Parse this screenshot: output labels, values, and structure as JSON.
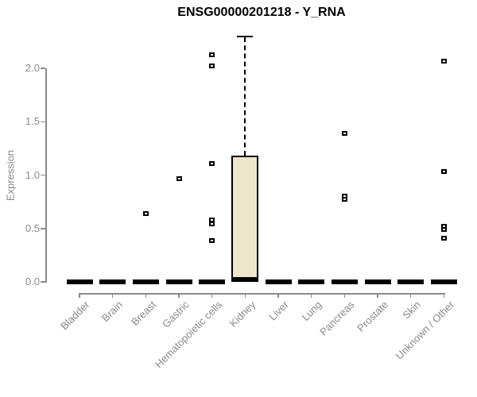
{
  "chart_data": {
    "type": "boxplot",
    "title": "ENSG00000201218 - Y_RNA",
    "ylabel": "Expression",
    "xlabel": "",
    "ylim": [
      0,
      2.35
    ],
    "yticks": [
      "0.0",
      "0.5",
      "1.0",
      "1.5",
      "2.0"
    ],
    "grid": "off",
    "legend": "none",
    "box_fill": "#EDE6CA",
    "box_border": "#000000",
    "axis_color": "#8a8a8a",
    "text_color": "#898989",
    "categories": [
      "Bladder",
      "Brain",
      "Breast",
      "Gastric",
      "Hematopoietic cells",
      "Kidney",
      "Liver",
      "Lung",
      "Pancreas",
      "Prostate",
      "Skin",
      "Unknown / Other"
    ],
    "series": [
      {
        "category": "Bladder",
        "q1": 0,
        "median": 0,
        "q3": 0,
        "whisker_low": 0,
        "whisker_high": 0,
        "outliers": []
      },
      {
        "category": "Brain",
        "q1": 0,
        "median": 0,
        "q3": 0,
        "whisker_low": 0,
        "whisker_high": 0,
        "outliers": []
      },
      {
        "category": "Breast",
        "q1": 0,
        "median": 0,
        "q3": 0,
        "whisker_low": 0,
        "whisker_high": 0,
        "outliers": [
          0.64
        ]
      },
      {
        "category": "Gastric",
        "q1": 0,
        "median": 0,
        "q3": 0,
        "whisker_low": 0,
        "whisker_high": 0,
        "outliers": [
          0.97
        ]
      },
      {
        "category": "Hematopoietic cells",
        "q1": 0,
        "median": 0,
        "q3": 0,
        "whisker_low": 0,
        "whisker_high": 0,
        "outliers": [
          2.13,
          2.02,
          1.11,
          0.58,
          0.54,
          0.39
        ]
      },
      {
        "category": "Kidney",
        "q1": 0,
        "median": 0.02,
        "q3": 1.18,
        "whisker_low": 0,
        "whisker_high": 2.3,
        "outliers": []
      },
      {
        "category": "Liver",
        "q1": 0,
        "median": 0,
        "q3": 0,
        "whisker_low": 0,
        "whisker_high": 0,
        "outliers": []
      },
      {
        "category": "Lung",
        "q1": 0,
        "median": 0,
        "q3": 0,
        "whisker_low": 0,
        "whisker_high": 0,
        "outliers": []
      },
      {
        "category": "Pancreas",
        "q1": 0,
        "median": 0,
        "q3": 0,
        "whisker_low": 0,
        "whisker_high": 0,
        "outliers": [
          1.39,
          0.8,
          0.77
        ]
      },
      {
        "category": "Prostate",
        "q1": 0,
        "median": 0,
        "q3": 0,
        "whisker_low": 0,
        "whisker_high": 0,
        "outliers": []
      },
      {
        "category": "Skin",
        "q1": 0,
        "median": 0,
        "q3": 0,
        "whisker_low": 0,
        "whisker_high": 0,
        "outliers": []
      },
      {
        "category": "Unknown / Other",
        "q1": 0,
        "median": 0,
        "q3": 0,
        "whisker_low": 0,
        "whisker_high": 0,
        "outliers": [
          2.07,
          1.03,
          0.52,
          0.49,
          0.41
        ]
      }
    ]
  }
}
